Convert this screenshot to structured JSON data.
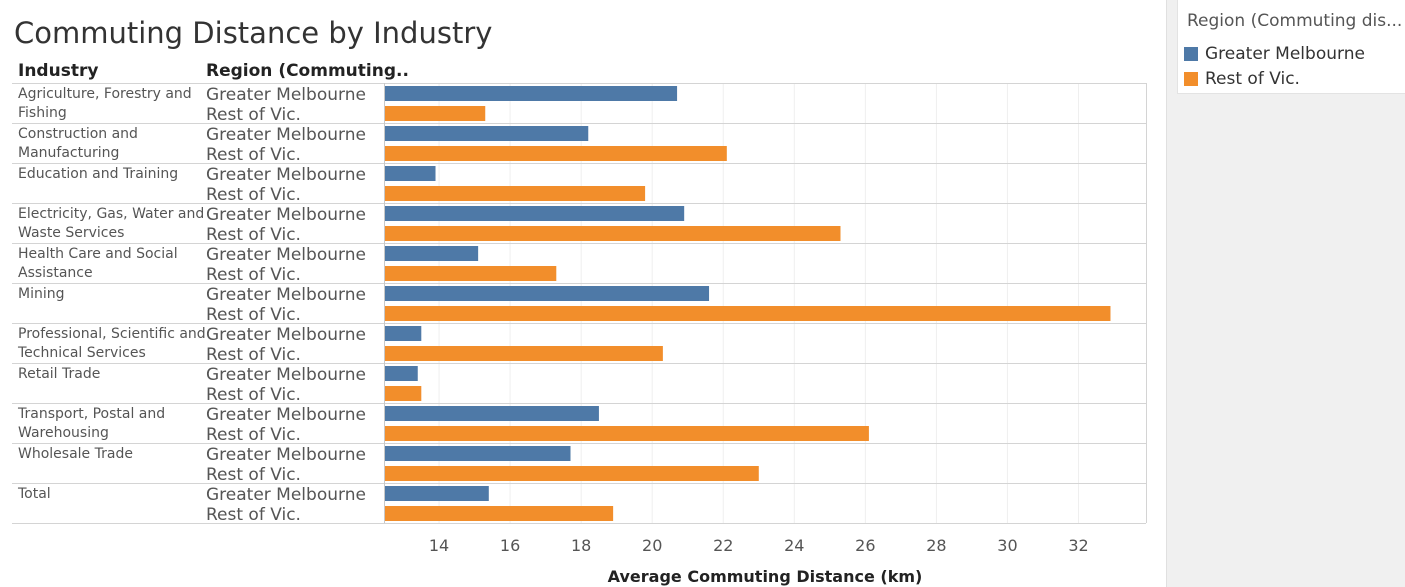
{
  "title": "Commuting Distance by Industry",
  "headers": {
    "industry": "Industry",
    "region": "Region (Commuting.."
  },
  "legend": {
    "title": "Region (Commuting dis...",
    "items": [
      {
        "label": "Greater Melbourne",
        "color": "#4e79a7"
      },
      {
        "label": "Rest of Vic.",
        "color": "#f28e2b"
      }
    ]
  },
  "chart_data": {
    "type": "bar",
    "orientation": "horizontal",
    "xlabel": "Average Commuting Distance (km)",
    "xlim": [
      12.45,
      33.9
    ],
    "xticks": [
      14,
      16,
      18,
      20,
      22,
      24,
      26,
      28,
      30,
      32
    ],
    "grid": true,
    "legend_position": "right",
    "categories": [
      {
        "label": "Agriculture, Forestry and Fishing",
        "lines": [
          "Agriculture, Forestry and",
          "Fishing"
        ]
      },
      {
        "label": "Construction and Manufacturing",
        "lines": [
          "Construction and",
          "Manufacturing"
        ]
      },
      {
        "label": "Education and Training",
        "lines": [
          "Education and Training"
        ]
      },
      {
        "label": "Electricity, Gas, Water and Waste Services",
        "lines": [
          "Electricity, Gas, Water and",
          "Waste Services"
        ]
      },
      {
        "label": "Health Care and Social Assistance",
        "lines": [
          "Health Care and Social",
          "Assistance"
        ]
      },
      {
        "label": "Mining",
        "lines": [
          "Mining"
        ]
      },
      {
        "label": "Professional, Scientific and Technical Services",
        "lines": [
          "Professional, Scientific and",
          "Technical Services"
        ]
      },
      {
        "label": "Retail Trade",
        "lines": [
          "Retail Trade"
        ]
      },
      {
        "label": "Transport, Postal and Warehousing",
        "lines": [
          "Transport, Postal and",
          "Warehousing"
        ]
      },
      {
        "label": "Wholesale Trade",
        "lines": [
          "Wholesale Trade"
        ]
      },
      {
        "label": "Total",
        "lines": [
          "Total"
        ]
      }
    ],
    "series": [
      {
        "name": "Greater Melbourne",
        "color": "#4e79a7",
        "values": [
          20.7,
          18.2,
          13.9,
          20.9,
          15.1,
          21.6,
          13.5,
          13.4,
          18.5,
          17.7,
          15.4
        ]
      },
      {
        "name": "Rest of Vic.",
        "color": "#f28e2b",
        "values": [
          15.3,
          22.1,
          19.8,
          25.3,
          17.3,
          32.9,
          20.3,
          13.5,
          26.1,
          23.0,
          18.9
        ]
      }
    ]
  }
}
